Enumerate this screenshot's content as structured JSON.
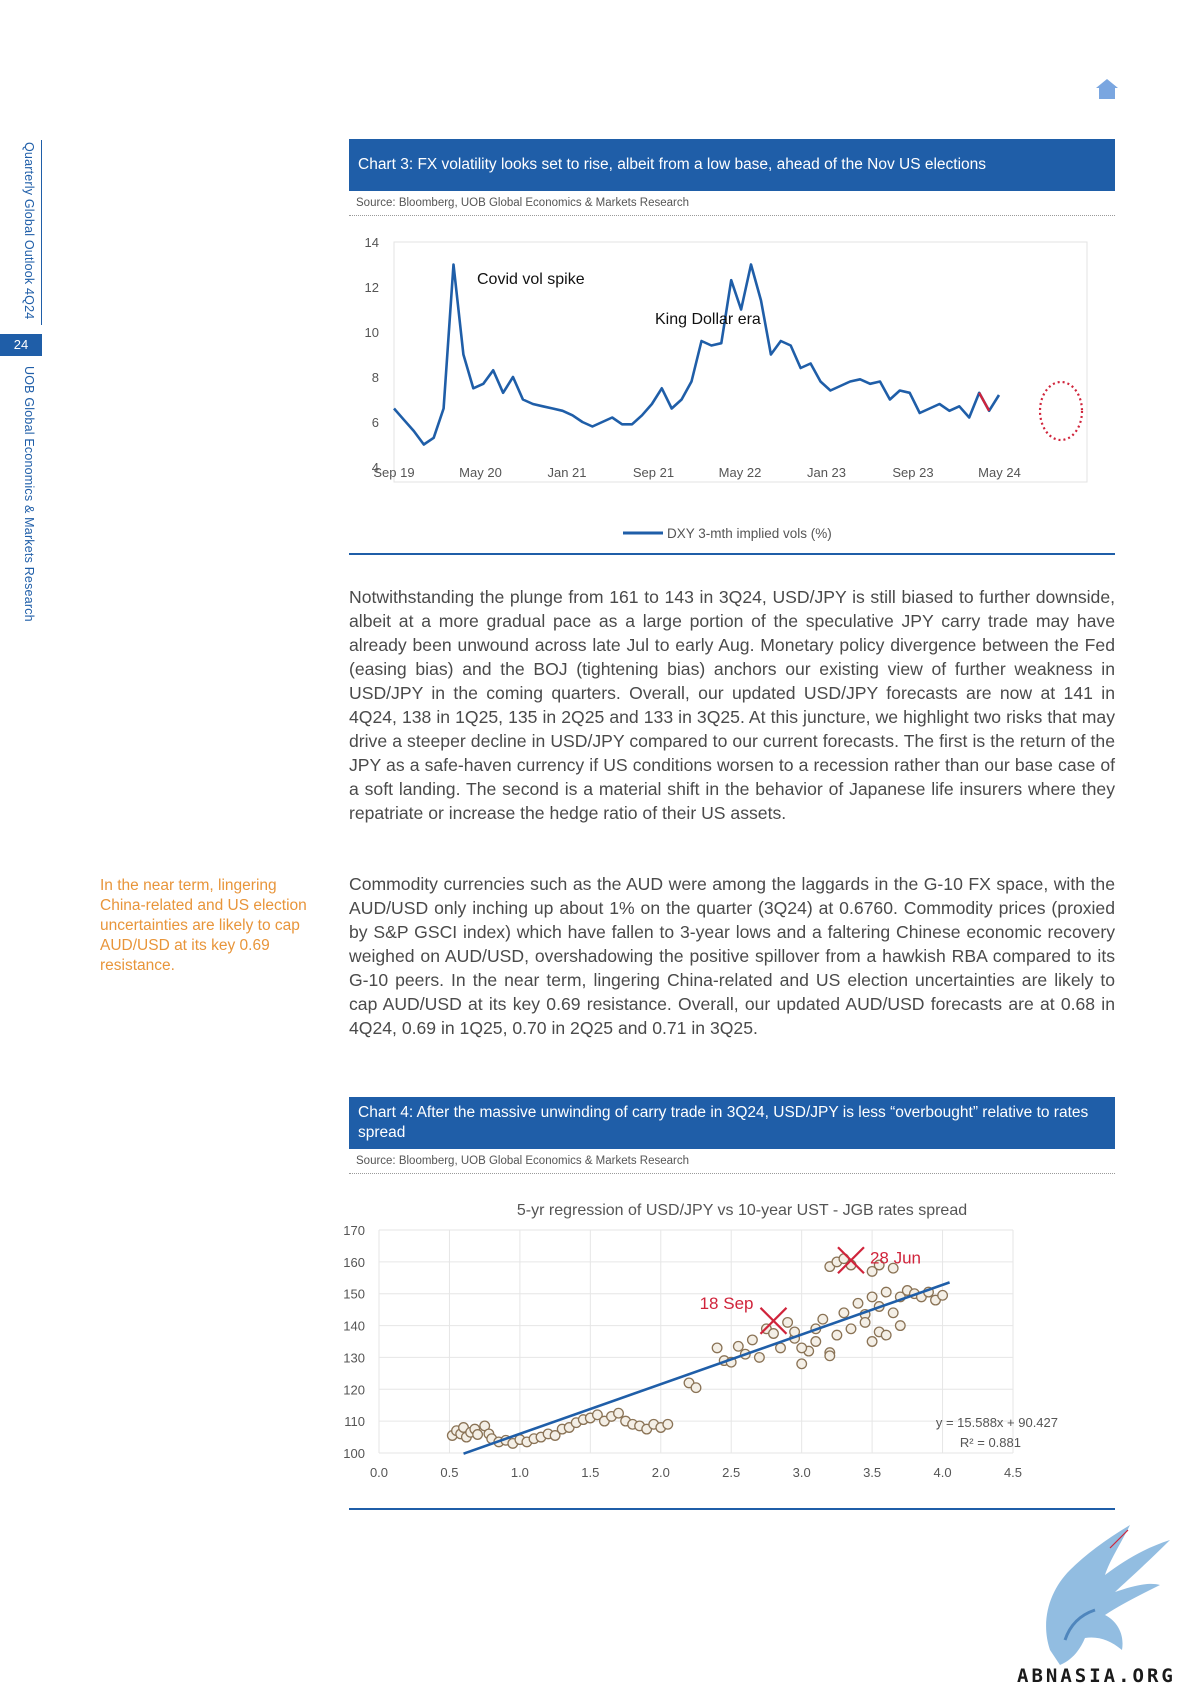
{
  "sidebar": {
    "publication": "Quarterly Global Outlook 4Q24",
    "page_number": "24",
    "publisher": "UOB Global Economics & Markets Research"
  },
  "chart3": {
    "title": "Chart 3: FX volatility looks set to rise, albeit from a low base, ahead of the Nov US elections",
    "source": "Source: Bloomberg, UOB Global Economics & Markets Research",
    "annotations": [
      "Covid vol spike",
      "King Dollar era"
    ],
    "legend": "DXY 3-mth implied vols (%)",
    "x_ticks": [
      "Sep 19",
      "May 20",
      "Jan 21",
      "Sep 21",
      "May 22",
      "Jan 23",
      "Sep 23",
      "May 24"
    ],
    "y_ticks": [
      "14",
      "12",
      "10",
      "8",
      "6",
      "4"
    ],
    "line_color": "#1f5ea8",
    "highlight_color": "#d0243b"
  },
  "chart4": {
    "title": "Chart 4: After the massive unwinding of carry trade in 3Q24, USD/JPY is less “overbought” relative to rates spread",
    "source": "Source: Bloomberg, UOB Global Economics & Markets Research",
    "inner_title": "5-yr regression of USD/JPY vs 10-year UST - JGB rates spread",
    "markers": [
      "28 Jun",
      "18 Sep"
    ],
    "equation": "y = 15.588x + 90.427",
    "r_squared": "R² = 0.881",
    "x_ticks": [
      "0.0",
      "0.5",
      "1.0",
      "1.5",
      "2.0",
      "2.5",
      "3.0",
      "3.5",
      "4.0",
      "4.5"
    ],
    "y_ticks": [
      "170",
      "160",
      "150",
      "140",
      "130",
      "120",
      "110",
      "100"
    ],
    "marker_color": "#d0243b",
    "point_color": "#8a7356",
    "trend_color": "#1f5ea8"
  },
  "chart_data": [
    {
      "type": "line",
      "title": "Chart 3: FX volatility looks set to rise, albeit from a low base, ahead of the Nov US elections",
      "xlabel": "",
      "ylabel": "",
      "ylim": [
        4,
        14
      ],
      "x_range": [
        "Sep 19",
        "Oct 24"
      ],
      "series": [
        {
          "name": "DXY 3-mth implied vols (%)",
          "x": [
            "2019-09",
            "2019-10",
            "2019-11",
            "2019-12",
            "2020-01",
            "2020-02",
            "2020-03",
            "2020-04",
            "2020-05",
            "2020-06",
            "2020-07",
            "2020-08",
            "2020-09",
            "2020-10",
            "2020-11",
            "2020-12",
            "2021-01",
            "2021-02",
            "2021-03",
            "2021-04",
            "2021-05",
            "2021-06",
            "2021-07",
            "2021-08",
            "2021-09",
            "2021-10",
            "2021-11",
            "2021-12",
            "2022-01",
            "2022-02",
            "2022-03",
            "2022-04",
            "2022-05",
            "2022-06",
            "2022-07",
            "2022-08",
            "2022-09",
            "2022-10",
            "2022-11",
            "2022-12",
            "2023-01",
            "2023-02",
            "2023-03",
            "2023-04",
            "2023-05",
            "2023-06",
            "2023-07",
            "2023-08",
            "2023-09",
            "2023-10",
            "2023-11",
            "2023-12",
            "2024-01",
            "2024-02",
            "2024-03",
            "2024-04",
            "2024-05",
            "2024-06",
            "2024-07",
            "2024-08",
            "2024-09",
            "2024-10"
          ],
          "values": [
            6.6,
            6.1,
            5.6,
            5.0,
            5.3,
            6.6,
            13.0,
            9.0,
            7.5,
            7.7,
            8.3,
            7.3,
            8.0,
            7.0,
            6.8,
            6.7,
            6.6,
            6.5,
            6.3,
            6.0,
            5.8,
            6.0,
            6.2,
            5.9,
            5.9,
            6.3,
            6.8,
            7.5,
            6.6,
            7.0,
            7.8,
            9.6,
            9.4,
            9.5,
            12.3,
            11.0,
            13.0,
            11.4,
            9.0,
            9.6,
            9.4,
            8.4,
            8.6,
            7.8,
            7.4,
            7.6,
            7.8,
            7.9,
            7.7,
            7.8,
            7.0,
            7.4,
            7.3,
            6.4,
            6.6,
            6.8,
            6.5,
            6.7,
            6.2,
            7.3,
            6.5,
            7.2
          ]
        }
      ],
      "annotations": [
        {
          "text": "Covid vol spike",
          "x": "2020-03",
          "y": 13.0
        },
        {
          "text": "King Dollar era",
          "x": "2022-09",
          "y": 13.0
        }
      ]
    },
    {
      "type": "scatter",
      "title": "5-yr regression of USD/JPY vs 10-year UST - JGB rates spread",
      "xlabel": "",
      "ylabel": "",
      "xlim": [
        0.0,
        4.5
      ],
      "ylim": [
        100,
        170
      ],
      "series": [
        {
          "name": "",
          "points": [
            [
              0.52,
              105.5
            ],
            [
              0.55,
              107
            ],
            [
              0.58,
              106
            ],
            [
              0.6,
              108
            ],
            [
              0.62,
              105
            ],
            [
              0.65,
              106.5
            ],
            [
              0.68,
              107.5
            ],
            [
              0.7,
              105.8
            ],
            [
              0.75,
              108.5
            ],
            [
              0.78,
              106
            ],
            [
              0.8,
              104.5
            ],
            [
              0.85,
              103.5
            ],
            [
              0.9,
              104
            ],
            [
              0.95,
              103
            ],
            [
              1.0,
              104.2
            ],
            [
              1.05,
              103.5
            ],
            [
              1.1,
              104.5
            ],
            [
              1.15,
              105
            ],
            [
              1.2,
              106
            ],
            [
              1.25,
              105.5
            ],
            [
              1.3,
              107.5
            ],
            [
              1.35,
              108
            ],
            [
              1.4,
              109.5
            ],
            [
              1.45,
              110.5
            ],
            [
              1.5,
              111
            ],
            [
              1.55,
              112
            ],
            [
              1.6,
              110
            ],
            [
              1.65,
              111.5
            ],
            [
              1.7,
              112.5
            ],
            [
              1.75,
              110
            ],
            [
              1.8,
              109
            ],
            [
              1.85,
              108.5
            ],
            [
              1.9,
              107.5
            ],
            [
              1.95,
              109
            ],
            [
              2.0,
              108
            ],
            [
              2.05,
              109
            ],
            [
              2.2,
              122
            ],
            [
              2.25,
              120.5
            ],
            [
              2.4,
              133
            ],
            [
              2.45,
              129
            ],
            [
              2.5,
              128.5
            ],
            [
              2.55,
              133.5
            ],
            [
              2.6,
              131
            ],
            [
              2.65,
              135.5
            ],
            [
              2.7,
              130
            ],
            [
              2.75,
              139
            ],
            [
              2.8,
              137.5
            ],
            [
              2.85,
              133
            ],
            [
              2.9,
              141
            ],
            [
              2.95,
              136
            ],
            [
              3.0,
              128
            ],
            [
              3.05,
              132
            ],
            [
              3.1,
              139
            ],
            [
              3.15,
              142
            ],
            [
              3.2,
              131.5
            ],
            [
              3.25,
              137
            ],
            [
              3.3,
              144
            ],
            [
              3.35,
              139
            ],
            [
              3.4,
              147
            ],
            [
              3.45,
              143.5
            ],
            [
              3.5,
              149
            ],
            [
              3.55,
              146
            ],
            [
              3.6,
              150.5
            ],
            [
              3.65,
              144
            ],
            [
              3.7,
              149
            ],
            [
              3.75,
              151
            ],
            [
              3.8,
              150
            ],
            [
              3.85,
              149
            ],
            [
              3.9,
              150.5
            ],
            [
              3.95,
              148
            ],
            [
              4.0,
              149.5
            ],
            [
              3.2,
              158.5
            ],
            [
              3.25,
              160
            ],
            [
              3.3,
              161
            ],
            [
              3.35,
              159
            ],
            [
              3.5,
              157
            ],
            [
              3.55,
              159
            ],
            [
              3.65,
              158
            ],
            [
              3.5,
              135
            ],
            [
              3.55,
              138
            ],
            [
              3.45,
              141
            ],
            [
              3.2,
              130.5
            ],
            [
              3.6,
              137
            ],
            [
              3.7,
              140
            ],
            [
              3.0,
              133
            ],
            [
              2.95,
              138
            ],
            [
              3.1,
              135
            ]
          ]
        }
      ],
      "trendline": {
        "slope": 15.588,
        "intercept": 90.427,
        "r_squared": 0.881
      },
      "markers": [
        {
          "label": "28 Jun",
          "x": 3.35,
          "y": 160.5
        },
        {
          "label": "18 Sep",
          "x": 2.8,
          "y": 141.5
        }
      ]
    }
  ],
  "para1": "Notwithstanding the plunge from 161 to 143 in 3Q24, USD/JPY is still biased to further downside, albeit at a more gradual pace as a large portion of the speculative JPY carry trade may have already been unwound across late Jul to early Aug. Monetary policy divergence between the Fed (easing bias) and the BOJ (tightening bias) anchors our existing view of further weakness in USD/JPY in the coming quarters. Overall, our updated USD/JPY forecasts are now at 141 in 4Q24, 138 in 1Q25, 135 in 2Q25 and 133 in 3Q25. At this juncture, we highlight two risks that may drive a steeper decline in USD/JPY compared to our current forecasts. The first is the return of the JPY as a safe-haven currency if US conditions worsen to a recession rather than our base case of a soft landing. The second is a material shift in the behavior of Japanese life insurers where they repatriate or increase the hedge ratio of their US assets.",
  "para2": "Commodity currencies such as the AUD were among the laggards in the G-10 FX space, with the AUD/USD only inching up about 1% on the quarter (3Q24) at 0.6760. Commodity prices (proxied by S&P GSCI index) which have fallen to 3-year lows and a faltering Chinese economic recovery weighed on AUD/USD, overshadowing the positive spillover from a hawkish RBA compared to its G-10 peers. In the near term, lingering China-related and US election uncertainties are likely to cap AUD/USD at its key 0.69 resistance. Overall, our updated AUD/USD forecasts are at 0.68 in 4Q24, 0.69 in 1Q25, 0.70 in 2Q25 and 0.71 in 3Q25.",
  "sidenote": "In the near term, lingering China-related and US election uncertainties are likely to cap AUD/USD at its key 0.69 resistance.",
  "footer": {
    "watermark": "ABNASIA.ORG"
  },
  "icons": {
    "home": "home-icon",
    "logo": "griffin-logo"
  }
}
